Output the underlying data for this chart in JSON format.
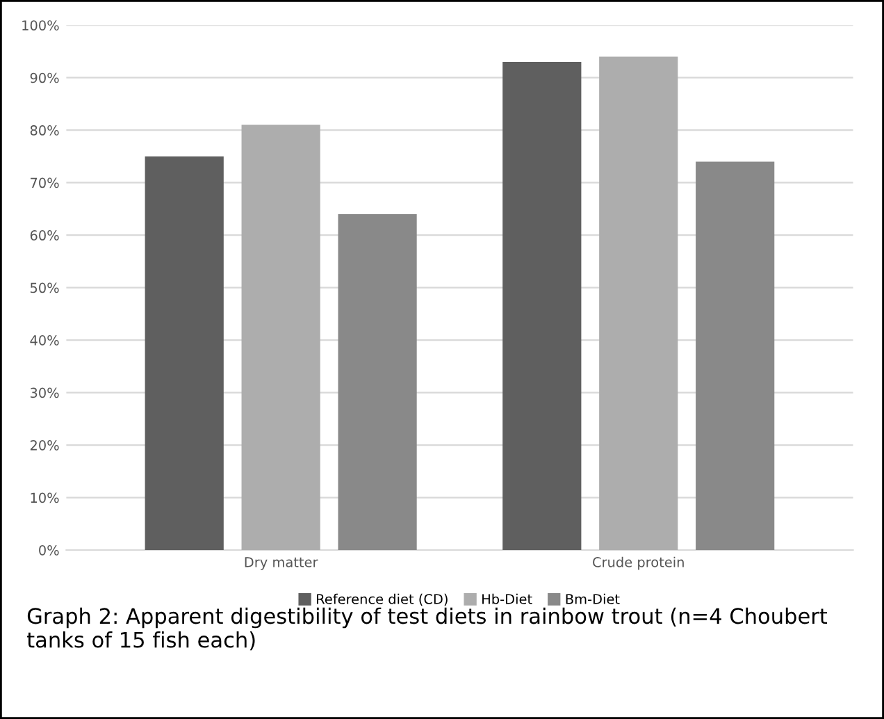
{
  "chart_data": {
    "type": "bar",
    "categories": [
      "Dry matter",
      "Crude protein"
    ],
    "series": [
      {
        "name": "Reference diet (CD)",
        "color": "#5f5f5f",
        "values": [
          75,
          93
        ]
      },
      {
        "name": "Hb-Diet",
        "color": "#adadad",
        "values": [
          81,
          94
        ]
      },
      {
        "name": "Bm-Diet",
        "color": "#898989",
        "values": [
          64,
          74
        ]
      }
    ],
    "ylim": [
      0,
      100
    ],
    "yticks": [
      {
        "value": 0,
        "label": "0%"
      },
      {
        "value": 10,
        "label": "10%"
      },
      {
        "value": 20,
        "label": "20%"
      },
      {
        "value": 30,
        "label": "30%"
      },
      {
        "value": 40,
        "label": "40%"
      },
      {
        "value": 50,
        "label": "50%"
      },
      {
        "value": 60,
        "label": "60%"
      },
      {
        "value": 70,
        "label": "70%"
      },
      {
        "value": 80,
        "label": "80%"
      },
      {
        "value": 90,
        "label": "90%"
      },
      {
        "value": 100,
        "label": "100%"
      }
    ],
    "grid": "y",
    "legend": "bottom",
    "annotations": [
      "Graph 2: Apparent digestibility of test diets in rainbow trout (n=4 Choubert tanks of 15 fish each)"
    ]
  }
}
